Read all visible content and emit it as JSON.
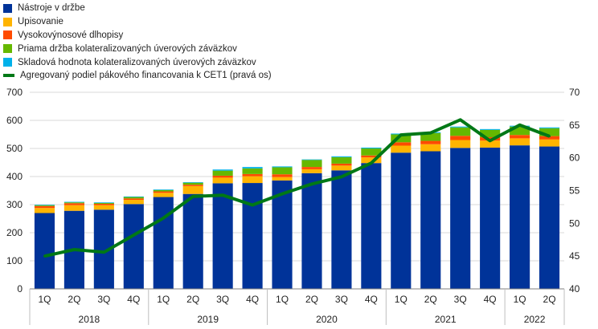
{
  "chart_data": {
    "type": "bar",
    "stacked": true,
    "categories": [
      "1Q",
      "2Q",
      "3Q",
      "4Q",
      "1Q",
      "2Q",
      "3Q",
      "4Q",
      "1Q",
      "2Q",
      "3Q",
      "4Q",
      "1Q",
      "2Q",
      "3Q",
      "4Q",
      "1Q",
      "2Q"
    ],
    "year_groups": [
      {
        "label": "2018",
        "count": 4
      },
      {
        "label": "2019",
        "count": 4
      },
      {
        "label": "2020",
        "count": 4
      },
      {
        "label": "2021",
        "count": 4
      },
      {
        "label": "2022",
        "count": 2
      }
    ],
    "series": [
      {
        "name": "Nástroje v držbe",
        "color": "#003399",
        "values": [
          270,
          278,
          282,
          302,
          327,
          338,
          376,
          377,
          386,
          412,
          422,
          448,
          485,
          490,
          502,
          503,
          511,
          507
        ]
      },
      {
        "name": "Upisovanie",
        "color": "#ffb400",
        "values": [
          18,
          20,
          16,
          15,
          15,
          28,
          20,
          24,
          12,
          14,
          17,
          20,
          25,
          25,
          28,
          25,
          25,
          25
        ]
      },
      {
        "name": "Vysokovýnosové dlhopisy",
        "color": "#ff4b00",
        "values": [
          7,
          7,
          5,
          5,
          5,
          5,
          7,
          8,
          10,
          8,
          7,
          7,
          12,
          12,
          15,
          12,
          12,
          12
        ]
      },
      {
        "name": "Priama držba kolateralizovaných úverových záväzkov",
        "color": "#65b800",
        "values": [
          3,
          3,
          3,
          5,
          5,
          7,
          18,
          20,
          25,
          25,
          23,
          25,
          28,
          28,
          30,
          26,
          30,
          28
        ]
      },
      {
        "name": "Skladová hodnota kolateralizovaných úverových záväzkov",
        "color": "#00b1ea",
        "values": [
          2,
          2,
          2,
          2,
          2,
          2,
          4,
          5,
          3,
          2,
          3,
          3,
          3,
          3,
          3,
          3,
          3,
          3
        ]
      }
    ],
    "line": {
      "name": "Agregovaný podiel pákového financovania k CET1 (pravá os)",
      "color": "#007816",
      "axis": "right",
      "values": [
        45.0,
        46.0,
        45.6,
        48.2,
        50.8,
        54.1,
        54.3,
        52.8,
        54.5,
        56.0,
        57.1,
        59.2,
        63.5,
        63.8,
        65.8,
        62.6,
        65.0,
        63.3
      ]
    },
    "yaxis_left": {
      "min": 0,
      "max": 700,
      "ticks": [
        "0",
        "100",
        "200",
        "300",
        "400",
        "500",
        "600",
        "700"
      ]
    },
    "yaxis_right": {
      "min": 40,
      "max": 70,
      "ticks": [
        "40",
        "45",
        "50",
        "55",
        "60",
        "65",
        "70"
      ]
    },
    "grid": true,
    "legend_position": "top-left"
  }
}
